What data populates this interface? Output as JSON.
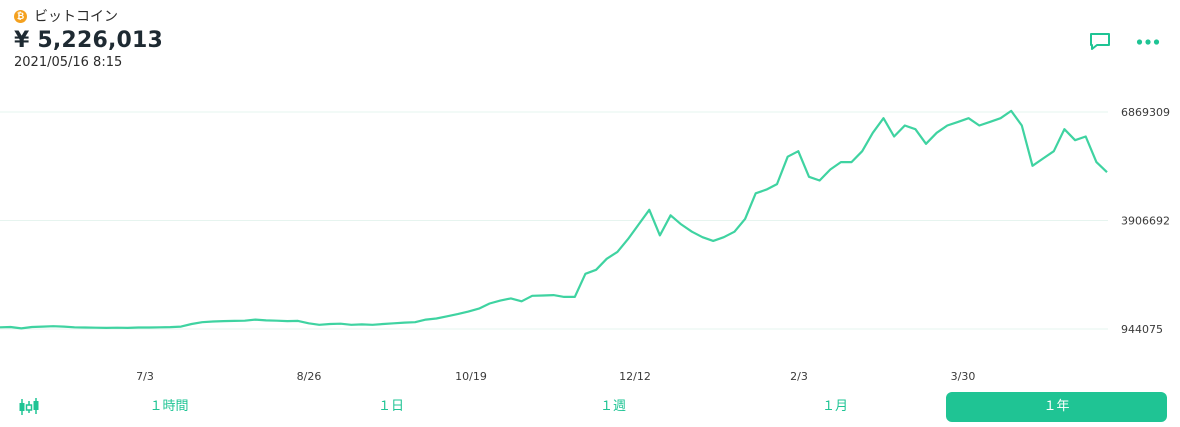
{
  "header": {
    "coin_name": "ビットコイン",
    "coin_symbol": "₿",
    "price": "¥ 5,226,013",
    "timestamp": "2021/05/16 8:15"
  },
  "actions": [
    {
      "name": "comment-icon"
    },
    {
      "name": "more-icon"
    }
  ],
  "colors": {
    "accent": "#1fc494",
    "line": "#3fd3a1",
    "grid": "#e6f4ef",
    "bitcoin": "#f4a11f"
  },
  "chart_data": {
    "type": "line",
    "y_ticks": [
      "6869309",
      "3906692",
      "944075"
    ],
    "x_ticks": [
      "7/3",
      "8/26",
      "10/19",
      "12/12",
      "2/3",
      "3/30"
    ],
    "ylim": [
      944075,
      6869309
    ],
    "series": [
      {
        "values": [
          [
            0,
            990000
          ],
          [
            1,
            1000000
          ],
          [
            2,
            960000
          ],
          [
            3,
            1000000
          ],
          [
            4,
            1010000
          ],
          [
            5,
            1020000
          ],
          [
            6,
            1010000
          ],
          [
            7,
            990000
          ],
          [
            8,
            985000
          ],
          [
            9,
            980000
          ],
          [
            10,
            975000
          ],
          [
            11,
            980000
          ],
          [
            12,
            975000
          ],
          [
            13,
            985000
          ],
          [
            14,
            985000
          ],
          [
            15,
            990000
          ],
          [
            16,
            995000
          ],
          [
            17,
            1010000
          ],
          [
            18,
            1080000
          ],
          [
            19,
            1130000
          ],
          [
            20,
            1150000
          ],
          [
            21,
            1160000
          ],
          [
            22,
            1165000
          ],
          [
            23,
            1170000
          ],
          [
            24,
            1200000
          ],
          [
            25,
            1180000
          ],
          [
            26,
            1170000
          ],
          [
            27,
            1160000
          ],
          [
            28,
            1165000
          ],
          [
            29,
            1100000
          ],
          [
            30,
            1060000
          ],
          [
            31,
            1080000
          ],
          [
            32,
            1090000
          ],
          [
            33,
            1060000
          ],
          [
            34,
            1070000
          ],
          [
            35,
            1060000
          ],
          [
            36,
            1080000
          ],
          [
            37,
            1100000
          ],
          [
            38,
            1120000
          ],
          [
            39,
            1130000
          ],
          [
            40,
            1200000
          ],
          [
            41,
            1230000
          ],
          [
            42,
            1290000
          ],
          [
            43,
            1350000
          ],
          [
            44,
            1420000
          ],
          [
            45,
            1500000
          ],
          [
            46,
            1640000
          ],
          [
            47,
            1720000
          ],
          [
            48,
            1780000
          ],
          [
            49,
            1700000
          ],
          [
            50,
            1850000
          ],
          [
            51,
            1860000
          ],
          [
            52,
            1870000
          ],
          [
            53,
            1820000
          ],
          [
            54,
            1820000
          ],
          [
            55,
            2450000
          ],
          [
            56,
            2560000
          ],
          [
            57,
            2860000
          ],
          [
            58,
            3050000
          ],
          [
            59,
            3400000
          ],
          [
            60,
            3800000
          ],
          [
            61,
            4200000
          ],
          [
            62,
            3500000
          ],
          [
            63,
            4050000
          ],
          [
            64,
            3800000
          ],
          [
            65,
            3600000
          ],
          [
            66,
            3450000
          ],
          [
            67,
            3350000
          ],
          [
            68,
            3450000
          ],
          [
            69,
            3600000
          ],
          [
            70,
            3950000
          ],
          [
            71,
            4650000
          ],
          [
            72,
            4750000
          ],
          [
            73,
            4900000
          ],
          [
            74,
            5650000
          ],
          [
            75,
            5800000
          ],
          [
            76,
            5100000
          ],
          [
            77,
            5000000
          ],
          [
            78,
            5300000
          ],
          [
            79,
            5500000
          ],
          [
            80,
            5500000
          ],
          [
            81,
            5800000
          ],
          [
            82,
            6300000
          ],
          [
            83,
            6700000
          ],
          [
            84,
            6200000
          ],
          [
            85,
            6500000
          ],
          [
            86,
            6400000
          ],
          [
            87,
            6000000
          ],
          [
            88,
            6300000
          ],
          [
            89,
            6500000
          ],
          [
            90,
            6600000
          ],
          [
            91,
            6700000
          ],
          [
            92,
            6500000
          ],
          [
            93,
            6600000
          ],
          [
            94,
            6700000
          ],
          [
            95,
            6900000
          ],
          [
            96,
            6500000
          ],
          [
            97,
            5400000
          ],
          [
            98,
            5600000
          ],
          [
            99,
            5800000
          ],
          [
            100,
            6400000
          ],
          [
            101,
            6100000
          ],
          [
            102,
            6200000
          ],
          [
            103,
            5500000
          ],
          [
            104,
            5226013
          ]
        ]
      }
    ],
    "grid": true
  },
  "tabs": [
    {
      "label": "１時間",
      "active": false
    },
    {
      "label": "１日",
      "active": false
    },
    {
      "label": "１週",
      "active": false
    },
    {
      "label": "１月",
      "active": false
    },
    {
      "label": "１年",
      "active": true
    }
  ]
}
